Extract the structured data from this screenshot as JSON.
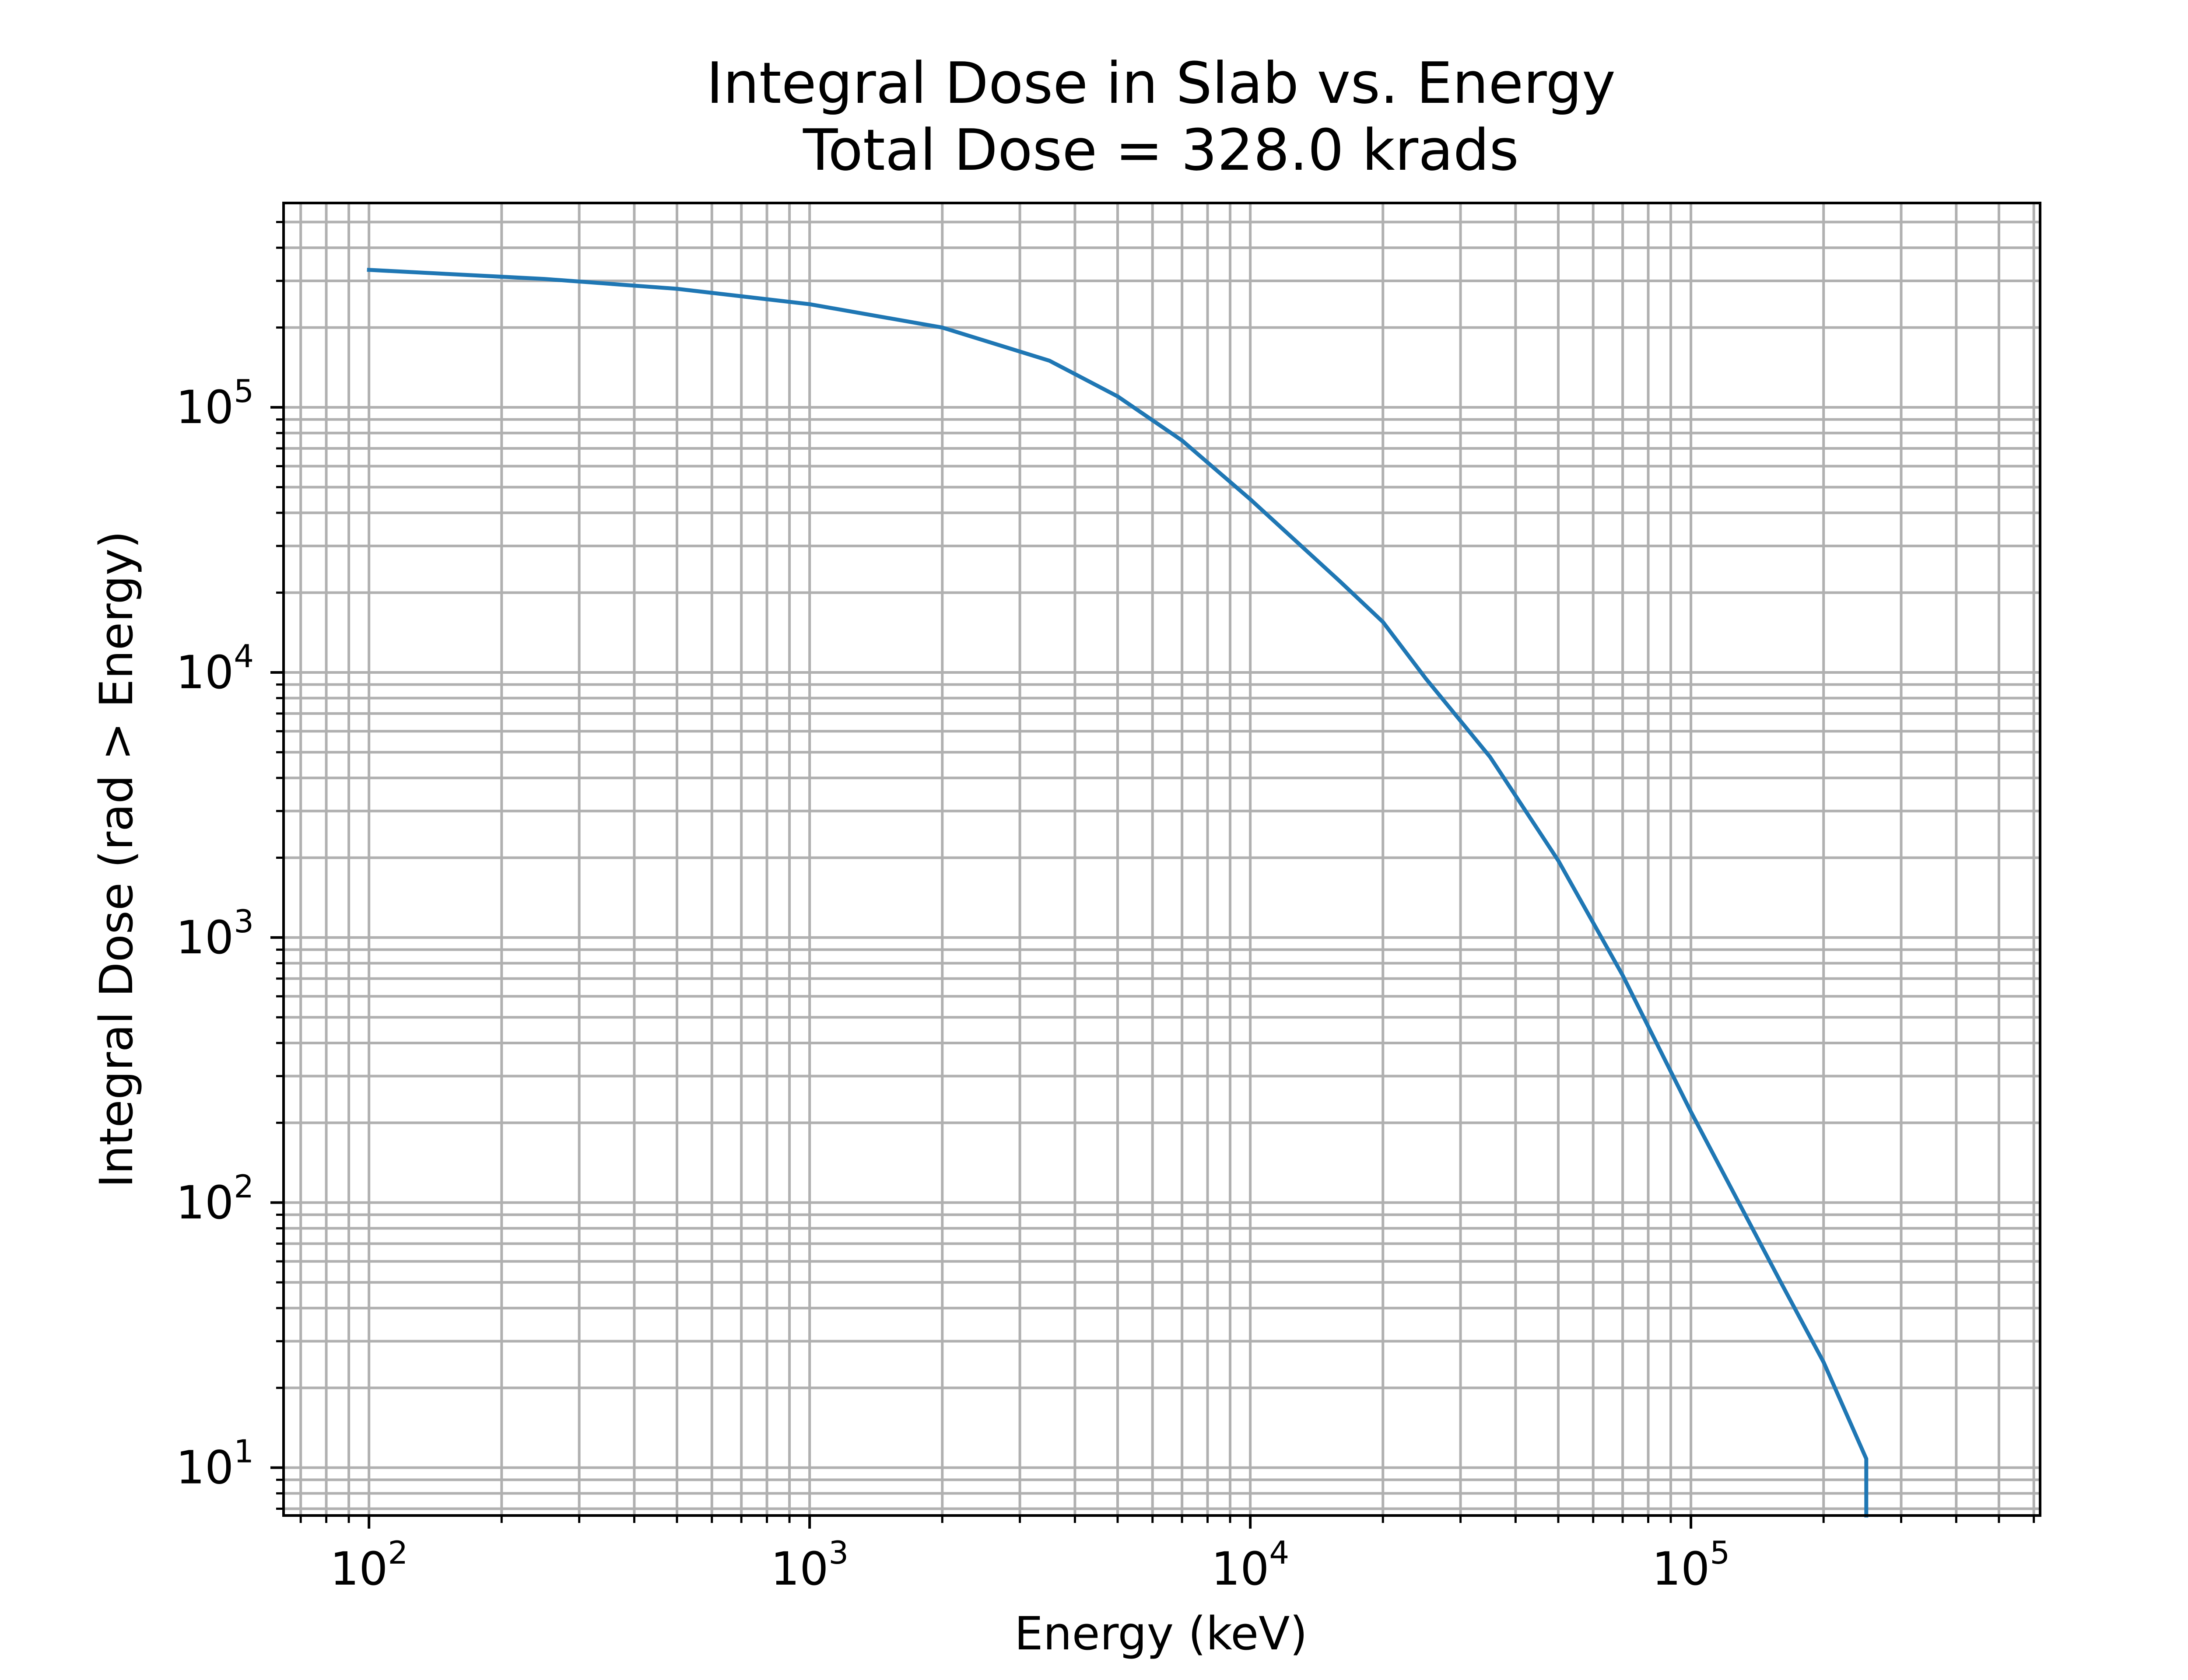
{
  "chart_data": {
    "type": "line",
    "title": "Integral Dose in Slab vs. Energy",
    "subtitle": "Total Dose = 328.0 krads",
    "xlabel": "Energy (keV)",
    "ylabel": "Integral Dose (rad > Energy)",
    "xscale": "log",
    "yscale": "log",
    "xlim": [
      64,
      620000
    ],
    "ylim": [
      6.6,
      590000
    ],
    "grid": true,
    "x_ticks": [
      {
        "value": 100,
        "mantissa": "10",
        "exponent": "2"
      },
      {
        "value": 1000,
        "mantissa": "10",
        "exponent": "3"
      },
      {
        "value": 10000,
        "mantissa": "10",
        "exponent": "4"
      },
      {
        "value": 100000,
        "mantissa": "10",
        "exponent": "5"
      }
    ],
    "y_ticks": [
      {
        "value": 10,
        "mantissa": "10",
        "exponent": "1"
      },
      {
        "value": 100,
        "mantissa": "10",
        "exponent": "2"
      },
      {
        "value": 1000,
        "mantissa": "10",
        "exponent": "3"
      },
      {
        "value": 10000,
        "mantissa": "10",
        "exponent": "4"
      },
      {
        "value": 100000,
        "mantissa": "10",
        "exponent": "5"
      }
    ],
    "series": [
      {
        "color": "#1f77b4",
        "x": [
          100,
          250,
          500,
          1000,
          2000,
          3500,
          5000,
          7000,
          10000,
          16000,
          20000,
          25000,
          35000,
          50000,
          70000,
          100000,
          160000,
          200000,
          250000,
          250000
        ],
        "y": [
          330000,
          305000,
          280000,
          245000,
          200000,
          150000,
          110000,
          75000,
          45000,
          22000,
          15500,
          9500,
          4800,
          1950,
          720,
          220,
          50,
          25,
          10.8,
          6.6
        ]
      }
    ]
  }
}
